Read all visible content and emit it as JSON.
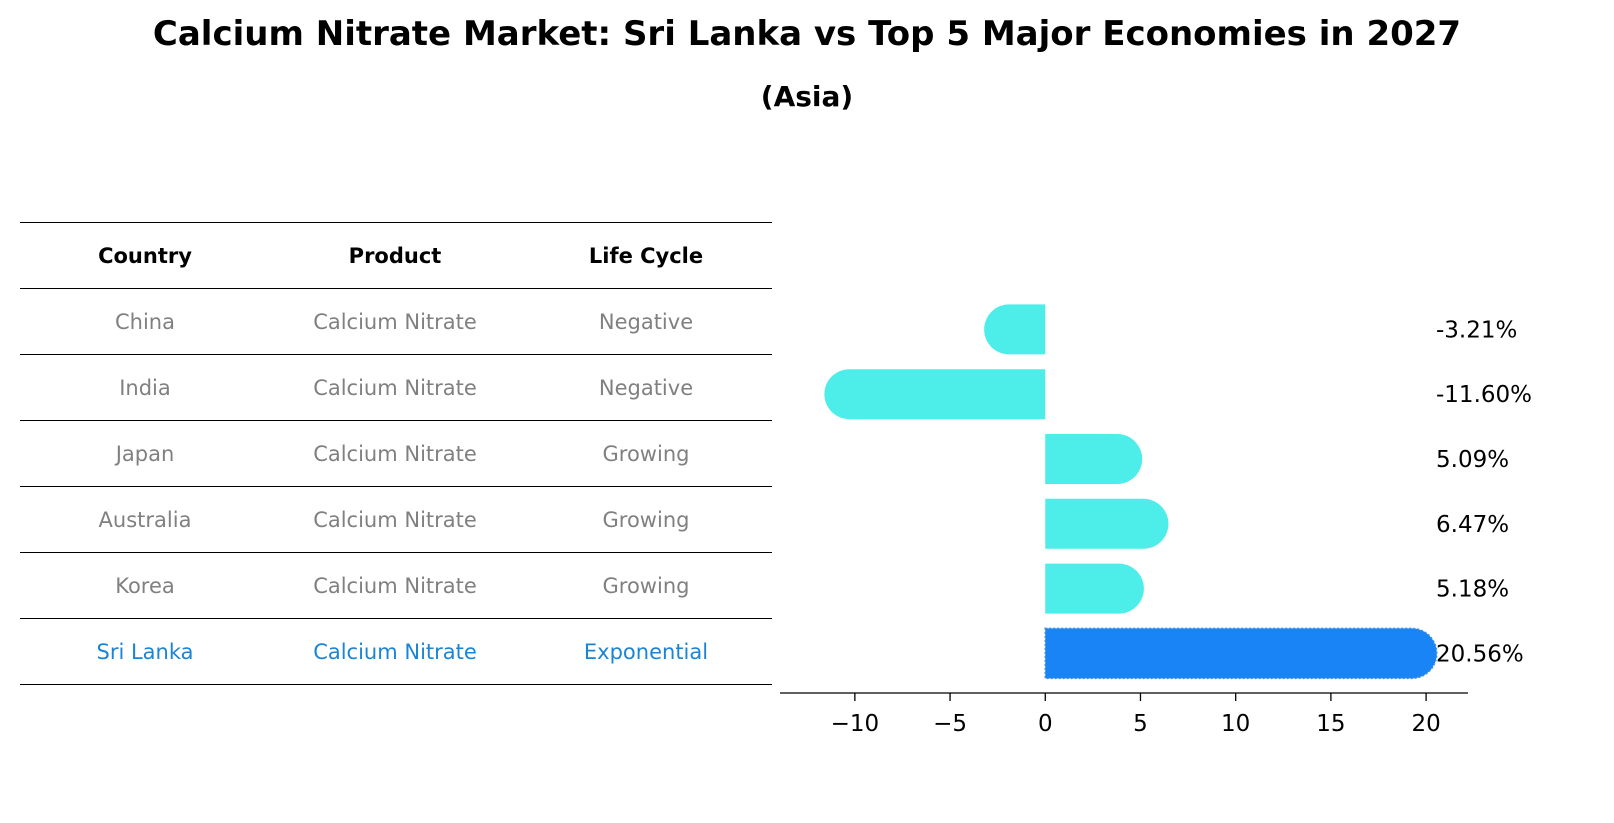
{
  "chart_data": {
    "type": "bar",
    "orientation": "horizontal",
    "title": "Calcium Nitrate Market: Sri Lanka vs Top 5 Major Economies in 2027",
    "subtitle": "(Asia)",
    "categories": [
      "China",
      "India",
      "Japan",
      "Australia",
      "Korea",
      "Sri Lanka"
    ],
    "values": [
      -3.21,
      -11.6,
      5.09,
      6.47,
      5.18,
      20.56
    ],
    "value_labels": [
      "-3.21%",
      "-11.60%",
      "5.09%",
      "6.47%",
      "5.18%",
      "20.56%"
    ],
    "highlight": "Sri Lanka",
    "xlim": [
      -13.3,
      22.2
    ],
    "xticks": [
      -10,
      -5,
      0,
      5,
      10,
      15,
      20
    ],
    "xtick_labels": [
      "−10",
      "−5",
      "0",
      "5",
      "10",
      "15",
      "20"
    ],
    "colors": {
      "default": "#4deeea",
      "highlight": "#1984f5"
    },
    "xlabel": "",
    "ylabel": "",
    "grid": false
  },
  "table": {
    "headers": [
      "Country",
      "Product",
      "Life Cycle"
    ],
    "rows": [
      [
        "China",
        "Calcium Nitrate",
        "Negative"
      ],
      [
        "India",
        "Calcium Nitrate",
        "Negative"
      ],
      [
        "Japan",
        "Calcium Nitrate",
        "Growing"
      ],
      [
        "Australia",
        "Calcium Nitrate",
        "Growing"
      ],
      [
        "Korea",
        "Calcium Nitrate",
        "Growing"
      ],
      [
        "Sri Lanka",
        "Calcium Nitrate",
        "Exponential"
      ]
    ],
    "colors": {
      "text": "#808080",
      "highlight": "#1a85d6"
    }
  }
}
